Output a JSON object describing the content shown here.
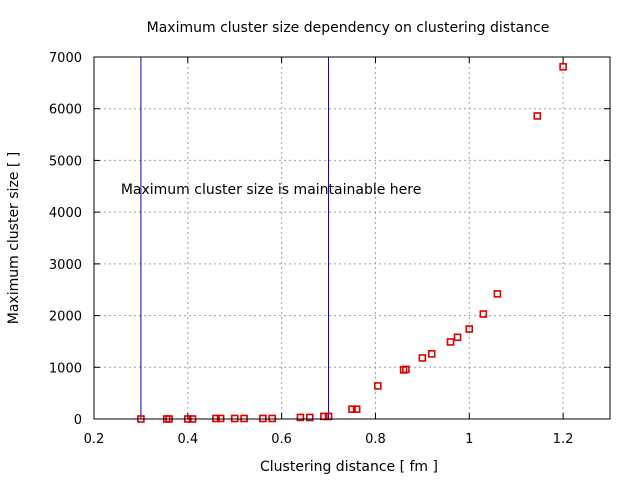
{
  "chart_data": {
    "type": "scatter",
    "title": "Maximum cluster size dependency on clustering distance",
    "xlabel": "Clustering distance [ fm ]",
    "ylabel": "Maximum cluster size [ ]",
    "xlim": [
      0.2,
      1.3
    ],
    "ylim": [
      0,
      7000
    ],
    "xticks": [
      0.2,
      0.4,
      0.6,
      0.8,
      1,
      1.2
    ],
    "xtick_labels": [
      "0.2",
      "0.4",
      "0.6",
      "0.8",
      "1",
      "1.2"
    ],
    "yticks": [
      0,
      1000,
      2000,
      3000,
      4000,
      5000,
      6000,
      7000
    ],
    "ytick_labels": [
      "0",
      "1000",
      "2000",
      "3000",
      "4000",
      "5000",
      "6000",
      "7000"
    ],
    "grid": true,
    "marker": "open-square",
    "marker_color": "#dd0000",
    "vertical_lines": [
      {
        "x": 0.3,
        "color": "#0000aa"
      },
      {
        "x": 0.7,
        "color": "#0000aa"
      }
    ],
    "annotation": {
      "text": "Maximum cluster size is maintainable here",
      "x": 0.27,
      "y": 4450
    },
    "series": [
      {
        "x": [
          0.3,
          0.355,
          0.36,
          0.4,
          0.41,
          0.46,
          0.47,
          0.5,
          0.52,
          0.56,
          0.58,
          0.64,
          0.66,
          0.69,
          0.7,
          0.75,
          0.76,
          0.805,
          0.86,
          0.865,
          0.9,
          0.92,
          0.96,
          0.975,
          1.0,
          1.03,
          1.06,
          1.145,
          1.2
        ],
        "y": [
          0,
          0,
          0,
          0,
          0,
          10,
          10,
          10,
          10,
          10,
          10,
          30,
          30,
          50,
          50,
          190,
          190,
          640,
          950,
          960,
          1180,
          1260,
          1490,
          1580,
          1740,
          2030,
          2420,
          5860,
          6810
        ]
      }
    ]
  }
}
